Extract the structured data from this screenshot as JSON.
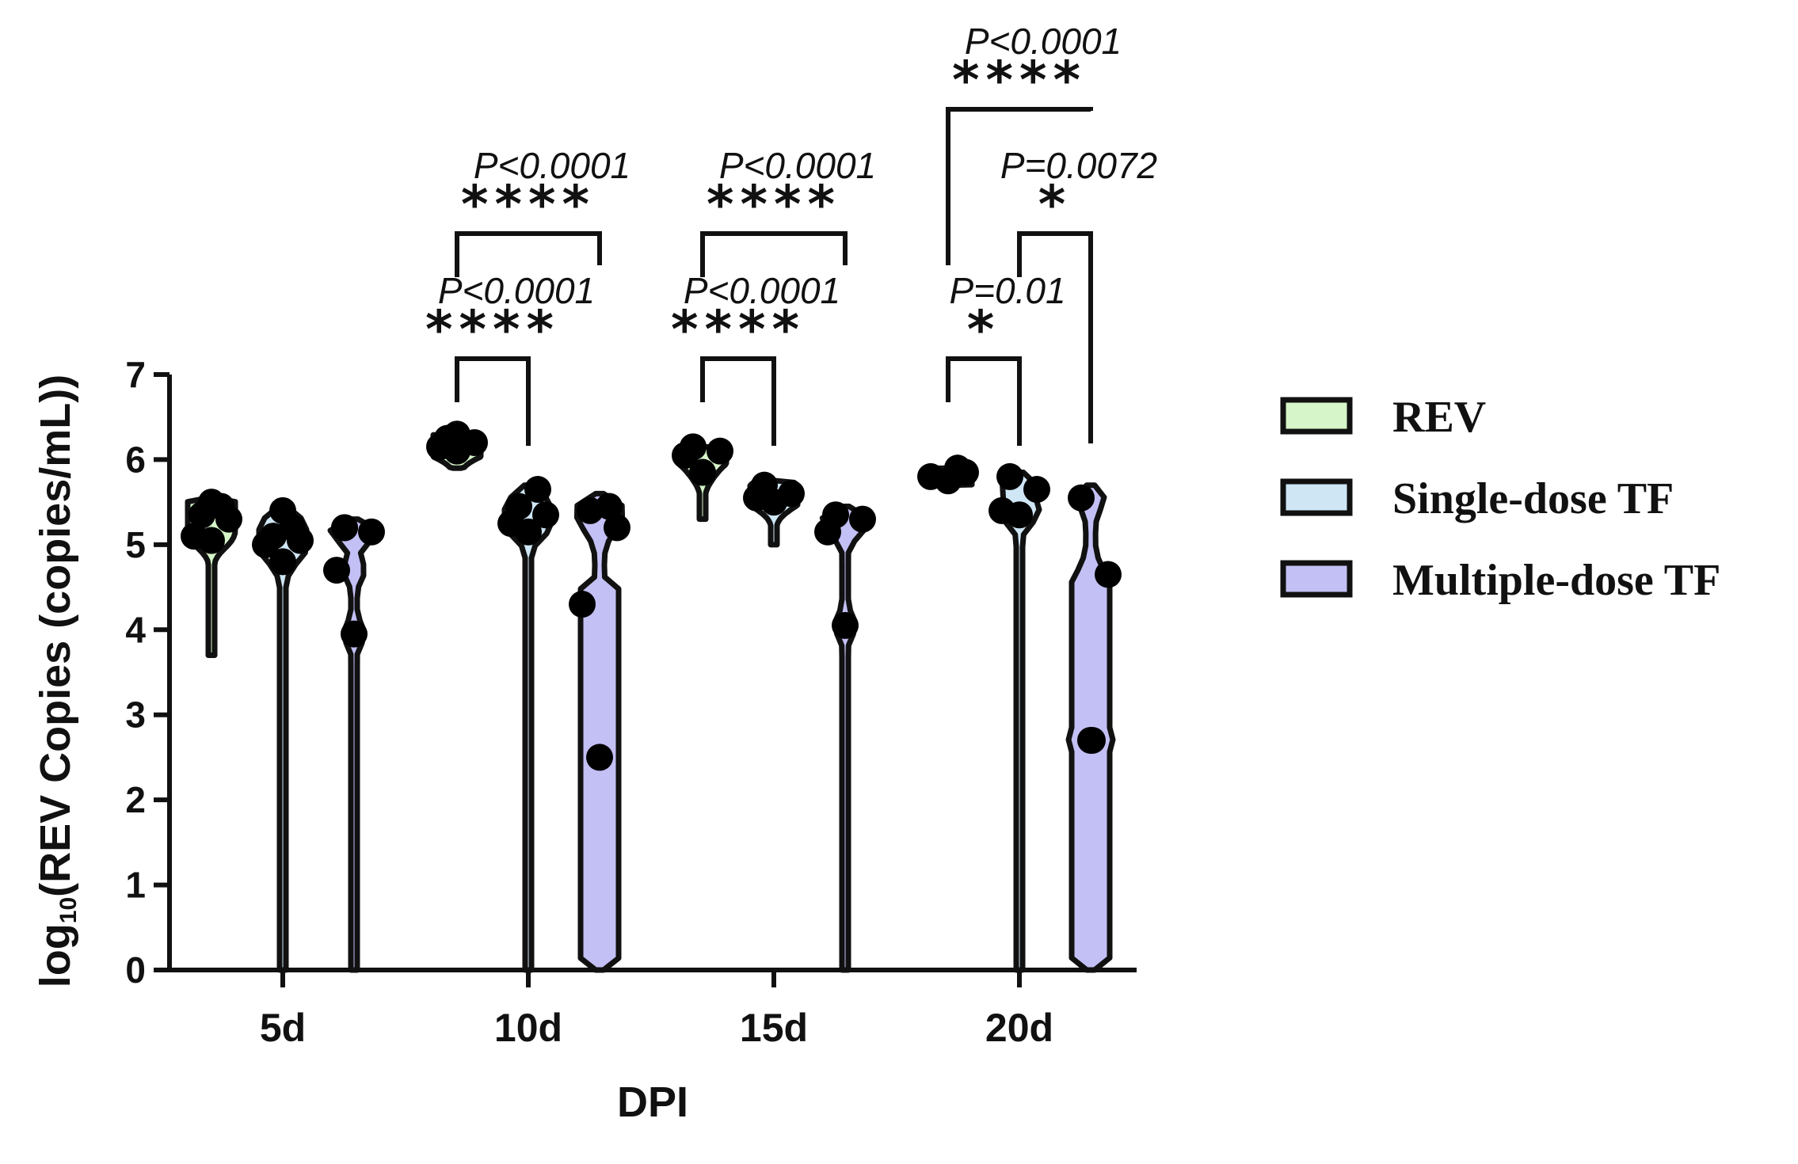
{
  "chart_data": {
    "type": "violin",
    "ylabel_prefix": "log",
    "ylabel_sub": "10",
    "ylabel_rest": "(REV Copies (copies/mL))",
    "xlabel": "DPI",
    "ylim": [
      0,
      7
    ],
    "yticks": [
      "0",
      "1",
      "2",
      "3",
      "4",
      "5",
      "6",
      "7"
    ],
    "categories": [
      "5d",
      "10d",
      "15d",
      "20d"
    ],
    "colors": [
      "#d6f5c8",
      "#cfe6f5",
      "#c3c0f5"
    ],
    "series": [
      {
        "name": "REV",
        "color": "#d6f5c8",
        "groups": [
          {
            "points": [
              5.05,
              5.1,
              5.3,
              5.35,
              5.45,
              5.5
            ],
            "min": 3.7,
            "max": 5.55
          },
          {
            "points": [
              6.1,
              6.15,
              6.2,
              6.25,
              6.25,
              6.3
            ],
            "min": 5.9,
            "max": 6.3
          },
          {
            "points": [
              5.85,
              6.05,
              6.1,
              6.15,
              6.15
            ],
            "min": 5.3,
            "max": 6.15
          },
          {
            "points": [
              5.75,
              5.8,
              5.85,
              5.85,
              5.9
            ],
            "min": 5.7,
            "max": 5.9
          }
        ]
      },
      {
        "name": "Single-dose TF",
        "color": "#cfe6f5",
        "groups": [
          {
            "points": [
              4.8,
              5.0,
              5.05,
              5.1,
              5.2,
              5.4
            ],
            "min": 0,
            "max": 5.45
          },
          {
            "points": [
              5.15,
              5.25,
              5.35,
              5.45,
              5.65
            ],
            "min": 0,
            "max": 5.7
          },
          {
            "points": [
              5.5,
              5.55,
              5.6,
              5.7
            ],
            "min": 5.0,
            "max": 5.75
          },
          {
            "points": [
              5.35,
              5.4,
              5.65,
              5.8
            ],
            "min": 0,
            "max": 5.85
          }
        ]
      },
      {
        "name": "Multiple-dose TF",
        "color": "#c3c0f5",
        "groups": [
          {
            "points": [
              3.95,
              4.7,
              5.15,
              5.2,
              5.2
            ],
            "min": 0,
            "max": 5.3
          },
          {
            "points": [
              2.5,
              4.3,
              5.2,
              5.4,
              5.45
            ],
            "min": 0,
            "max": 5.6
          },
          {
            "points": [
              4.05,
              5.15,
              5.3,
              5.35
            ],
            "min": 0,
            "max": 5.45
          },
          {
            "points": [
              2.7,
              2.7,
              4.65,
              5.55
            ],
            "min": 0,
            "max": 5.7
          }
        ]
      }
    ],
    "legend": [
      "REV",
      "Single-dose TF",
      "Multiple-dose TF"
    ],
    "legend_position": "right",
    "comparisons": [
      {
        "category": "10d",
        "from": "REV",
        "to": "Single-dose TF",
        "p": "P<0.0001",
        "stars": "****"
      },
      {
        "category": "10d",
        "from": "REV",
        "to": "Multiple-dose TF",
        "p": "P<0.0001",
        "stars": "****"
      },
      {
        "category": "15d",
        "from": "REV",
        "to": "Single-dose TF",
        "p": "P<0.0001",
        "stars": "****"
      },
      {
        "category": "15d",
        "from": "REV",
        "to": "Multiple-dose TF",
        "p": "P<0.0001",
        "stars": "****"
      },
      {
        "category": "20d",
        "from": "REV",
        "to": "Single-dose TF",
        "p": "P=0.01",
        "stars": "*"
      },
      {
        "category": "20d",
        "from": "Single-dose TF",
        "to": "Multiple-dose TF",
        "p": "P=0.0072",
        "stars": "*"
      },
      {
        "category": "20d",
        "from": "REV",
        "to": "Multiple-dose TF",
        "p": "P<0.0001",
        "stars": "****"
      }
    ]
  }
}
